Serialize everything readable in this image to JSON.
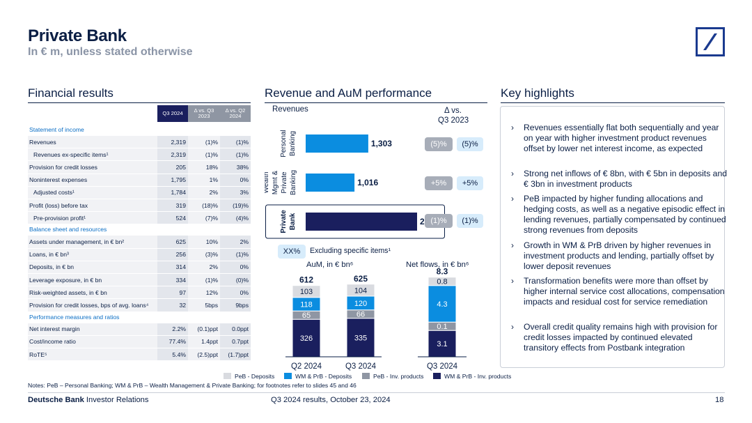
{
  "header": {
    "title": "Private Bank",
    "subtitle": "In € m, unless stated otherwise"
  },
  "sections": {
    "financial": "Financial results",
    "revenue": "Revenue and AuM performance",
    "highlights": "Key highlights"
  },
  "colors": {
    "navy": "#1a1f5e",
    "blue": "#0b8de0",
    "gray": "#8f96a3",
    "lightgray": "#d9dbe0",
    "section_blue": "#0b6ec5"
  },
  "icons": {
    "logo": "deutsche-bank-logo-icon",
    "bullet": "chevron-right-icon"
  },
  "table": {
    "headers": [
      "Q3 2024",
      "Δ vs. Q3 2023",
      "Δ vs. Q2 2024"
    ],
    "rows": [
      {
        "type": "section",
        "label": "Statement of income"
      },
      {
        "type": "data",
        "label": "Revenues",
        "v": [
          "2,319",
          "(1)%",
          "(1)%"
        ]
      },
      {
        "type": "data",
        "indent": true,
        "label": "Revenues ex-specific items¹",
        "v": [
          "2,319",
          "(1)%",
          "(1)%"
        ]
      },
      {
        "type": "data",
        "label": "Provision for credit losses",
        "v": [
          "205",
          "18%",
          "38%"
        ]
      },
      {
        "type": "data",
        "label": "Noninterest expenses",
        "v": [
          "1,795",
          "1%",
          "0%"
        ]
      },
      {
        "type": "data",
        "indent": true,
        "label": "Adjusted costs¹",
        "v": [
          "1,784",
          "2%",
          "3%"
        ]
      },
      {
        "type": "data",
        "label": "Profit (loss) before tax",
        "v": [
          "319",
          "(18)%",
          "(19)%"
        ]
      },
      {
        "type": "data",
        "indent": true,
        "label": "Pre-provision profit¹",
        "v": [
          "524",
          "(7)%",
          "(4)%"
        ]
      },
      {
        "type": "section",
        "label": "Balance sheet and resources"
      },
      {
        "type": "data",
        "label": "Assets under management, in € bn²",
        "v": [
          "625",
          "10%",
          "2%"
        ]
      },
      {
        "type": "data",
        "label": "Loans, in € bn³",
        "v": [
          "256",
          "(3)%",
          "(1)%"
        ]
      },
      {
        "type": "data",
        "label": "Deposits, in € bn",
        "v": [
          "314",
          "2%",
          "0%"
        ]
      },
      {
        "type": "data",
        "label": "Leverage exposure, in € bn",
        "v": [
          "334",
          "(1)%",
          "(0)%"
        ]
      },
      {
        "type": "data",
        "label": "Risk-weighted assets, in € bn",
        "v": [
          "97",
          "12%",
          "0%"
        ]
      },
      {
        "type": "data",
        "label": "Provision for credit losses, bps of avg. loans⁴",
        "v": [
          "32",
          "5bps",
          "9bps"
        ]
      },
      {
        "type": "section",
        "label": "Performance measures and ratios"
      },
      {
        "type": "data",
        "label": "Net interest margin",
        "v": [
          "2.2%",
          "(0.1)ppt",
          "0.0ppt"
        ]
      },
      {
        "type": "data",
        "label": "Cost/income ratio",
        "v": [
          "77.4%",
          "1.4ppt",
          "0.7ppt"
        ]
      },
      {
        "type": "data",
        "label": "RoTE⁵",
        "v": [
          "5.4%",
          "(2.5)ppt",
          "(1.7)ppt"
        ]
      }
    ]
  },
  "revenue_panel": {
    "revenues_label": "Revenues",
    "delta_label_1": "Δ vs.",
    "delta_label_2": "Q3 2023",
    "pill_key": "XX%",
    "pill_key_text": "Excluding specific items¹",
    "aum_label": "AuM, in € bn⁶",
    "netflows_label": "Net flows, in € bn⁶",
    "segment_labels": [
      [
        "Personal",
        "Banking"
      ],
      [
        "Wealth",
        "Mgmt &",
        "Private",
        "Banking"
      ],
      [
        "Private",
        "Bank"
      ]
    ],
    "pills": [
      {
        "excl": "(5)%",
        "reported": "(5)%"
      },
      {
        "excl": "+5%",
        "reported": "+5%"
      },
      {
        "excl": "(1)%",
        "reported": "(1)%"
      }
    ]
  },
  "chart_data": [
    {
      "type": "bar",
      "title": "Revenues",
      "orientation": "horizontal",
      "categories": [
        "Personal Banking",
        "Wealth Mgmt & Private Banking",
        "Private Bank"
      ],
      "values": [
        1303,
        1016,
        2319
      ],
      "labels": [
        "1,303",
        "1,016",
        "2,319"
      ],
      "colors": [
        "#0b8de0",
        "#0b8de0",
        "#1a1f5e"
      ]
    },
    {
      "type": "bar",
      "stacked": true,
      "title": "AuM, in € bn⁶",
      "categories": [
        "Q2 2024",
        "Q3 2024"
      ],
      "totals": [
        612,
        625
      ],
      "series": [
        {
          "name": "WM & PrB - Inv. products",
          "values": [
            326,
            335
          ],
          "color": "#1a1f5e"
        },
        {
          "name": "PeB - Inv. products",
          "values": [
            65,
            66
          ],
          "color": "#8f96a3"
        },
        {
          "name": "WM & PrB - Deposits",
          "values": [
            118,
            120
          ],
          "color": "#0b8de0"
        },
        {
          "name": "PeB - Deposits",
          "values": [
            103,
            104
          ],
          "color": "#d9dbe0"
        }
      ]
    },
    {
      "type": "bar",
      "stacked": true,
      "title": "Net flows, in € bn⁶",
      "categories": [
        "Q3 2024"
      ],
      "totals": [
        8.3
      ],
      "series": [
        {
          "name": "WM & PrB - Inv. products",
          "values": [
            3.1
          ],
          "color": "#1a1f5e"
        },
        {
          "name": "PeB - Inv. products",
          "values": [
            0.1
          ],
          "color": "#8f96a3"
        },
        {
          "name": "WM & PrB - Deposits",
          "values": [
            4.3
          ],
          "color": "#0b8de0"
        },
        {
          "name": "PeB - Deposits",
          "values": [
            0.8
          ],
          "color": "#d9dbe0"
        }
      ]
    }
  ],
  "legend": [
    "PeB - Deposits",
    "WM & PrB - Deposits",
    "PeB - Inv. products",
    "WM & PrB - Inv. products"
  ],
  "highlights": [
    "Revenues essentially flat both sequentially and year on year with higher investment product revenues offset by lower net interest income, as expected",
    "Strong net inflows of € 8bn, with € 5bn in deposits and € 3bn in investment products",
    "PeB impacted by higher funding allocations and hedging costs, as well as a negative episodic effect in lending revenues, partially compensated by continued strong revenues from deposits",
    "Growth in WM & PrB driven by higher revenues in investment products and lending, partially offset by lower deposit revenues",
    "Transformation benefits were more than offset by higher internal service cost allocations, compensation impacts and residual cost for service remediation",
    "Overall credit quality remains high with provision for credit losses impacted by continued elevated transitory effects from Postbank integration"
  ],
  "footer": {
    "notes": "Notes: PeB – Personal Banking; WM & PrB – Wealth Management & Private Banking; for footnotes refer to slides 45 and 46",
    "brand_bold": "Deutsche Bank",
    "brand_rest": " Investor Relations",
    "event": "Q3 2024 results, October 23, 2024",
    "page": "18"
  }
}
